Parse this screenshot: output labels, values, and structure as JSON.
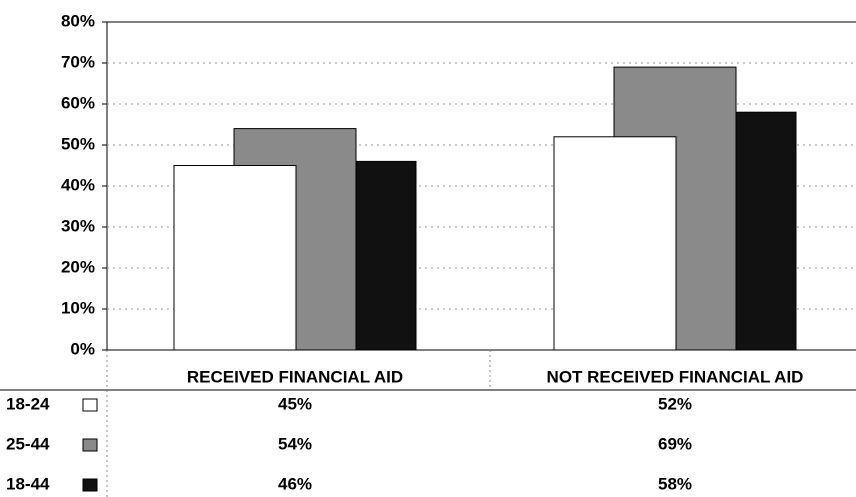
{
  "chart_data": {
    "type": "bar",
    "categories": [
      "RECEIVED FINANCIAL AID",
      "NOT RECEIVED FINANCIAL AID"
    ],
    "series": [
      {
        "name": "18-24",
        "color": "#ffffff",
        "values": [
          45,
          52
        ],
        "value_labels": [
          "45%",
          "52%"
        ]
      },
      {
        "name": "25-44",
        "color": "#8a8a8a",
        "values": [
          54,
          69
        ],
        "value_labels": [
          "54%",
          "69%"
        ]
      },
      {
        "name": "18-44",
        "color": "#111111",
        "values": [
          46,
          58
        ],
        "value_labels": [
          "46%",
          "58%"
        ]
      }
    ],
    "ylim": [
      0,
      80
    ],
    "yticks": [
      {
        "value": 0,
        "label": "0%"
      },
      {
        "value": 10,
        "label": "10%"
      },
      {
        "value": 20,
        "label": "20%"
      },
      {
        "value": 30,
        "label": "30%"
      },
      {
        "value": 40,
        "label": "40%"
      },
      {
        "value": 50,
        "label": "50%"
      },
      {
        "value": 60,
        "label": "60%"
      },
      {
        "value": 70,
        "label": "70%"
      },
      {
        "value": 80,
        "label": "80%"
      }
    ],
    "grid": true
  }
}
